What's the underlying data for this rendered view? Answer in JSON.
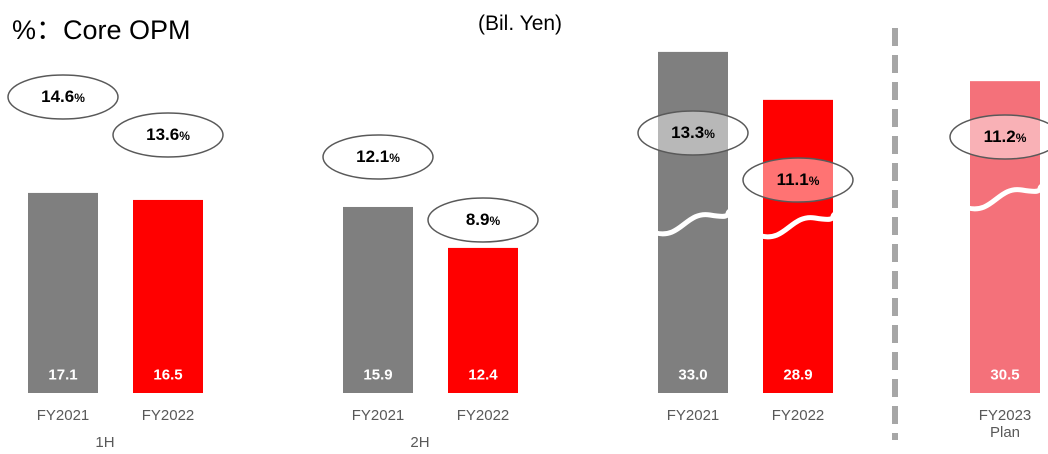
{
  "chart_data": {
    "type": "bar",
    "title": "%：Core OPM",
    "subtitle": "(Bil. Yen)",
    "categories": [
      "FY2021",
      "FY2022",
      "FY2021",
      "FY2022",
      "FY2021",
      "FY2022",
      "FY2023\nPlan"
    ],
    "group_labels": [
      "1H",
      "2H"
    ],
    "values": [
      17.1,
      16.5,
      15.9,
      12.4,
      33.0,
      28.9,
      30.5
    ],
    "value_labels": [
      "17.1",
      "16.5",
      "15.9",
      "12.4",
      "33.0",
      "28.9",
      "30.5"
    ],
    "colors": [
      "#7f7f7f",
      "#ff0000",
      "#7f7f7f",
      "#ff0000",
      "#7f7f7f",
      "#ff0000",
      "#f4717a"
    ],
    "broken": [
      false,
      false,
      false,
      false,
      true,
      true,
      true
    ],
    "margins": [
      14.6,
      13.6,
      12.1,
      8.9,
      13.3,
      11.1,
      11.2
    ],
    "margin_labels": [
      "14.6%",
      "13.6%",
      "12.1%",
      "8.9%",
      "13.3%",
      "11.1%",
      "11.2%"
    ]
  }
}
